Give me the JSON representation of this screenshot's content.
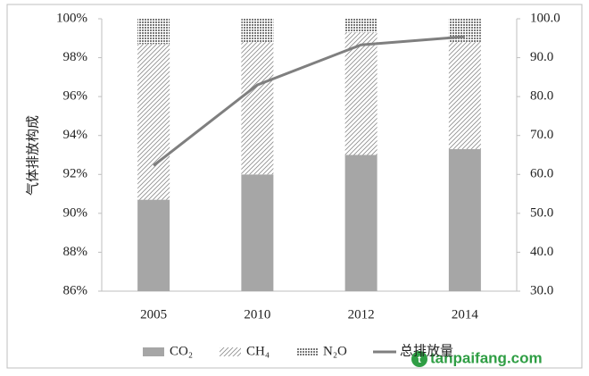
{
  "chart_data": {
    "type": "bar",
    "stacked": true,
    "ylabel": "气体排放构成",
    "categories": [
      "2005",
      "2010",
      "2012",
      "2014"
    ],
    "series": [
      {
        "name": "CO₂",
        "color": "#a6a6a6",
        "pattern": "solid",
        "values": [
          90.7,
          92.0,
          93.0,
          93.3
        ]
      },
      {
        "name": "CH₄",
        "color": "#8c8c8c",
        "pattern": "hatch",
        "values": [
          8.0,
          6.8,
          6.3,
          5.5
        ]
      },
      {
        "name": "N₂O",
        "color": "#7a7a7a",
        "pattern": "cross",
        "values": [
          1.3,
          1.2,
          0.7,
          1.2
        ]
      },
      {
        "name": "总排放量",
        "color": "#7f7f7f",
        "type": "line",
        "axis": "y2",
        "values": [
          62.3,
          83.0,
          93.3,
          95.4
        ]
      }
    ],
    "ylim": [
      86,
      100
    ],
    "yticks": [
      {
        "value": 86,
        "label": "86%"
      },
      {
        "value": 88,
        "label": "88%"
      },
      {
        "value": 90,
        "label": "90%"
      },
      {
        "value": 92,
        "label": "92%"
      },
      {
        "value": 94,
        "label": "94%"
      },
      {
        "value": 96,
        "label": "96%"
      },
      {
        "value": 98,
        "label": "98%"
      },
      {
        "value": 100,
        "label": "100%"
      }
    ],
    "y2lim": [
      30,
      100
    ],
    "y2ticks": [
      {
        "value": 30,
        "label": "30.0"
      },
      {
        "value": 40,
        "label": "40.0"
      },
      {
        "value": 50,
        "label": "50.0"
      },
      {
        "value": 60,
        "label": "60.0"
      },
      {
        "value": 70,
        "label": "70.0"
      },
      {
        "value": 80,
        "label": "80.0"
      },
      {
        "value": 90,
        "label": "90.0"
      },
      {
        "value": 100,
        "label": "100.0"
      }
    ],
    "legend": "bottom",
    "watermark": "tanpaifang.com"
  }
}
